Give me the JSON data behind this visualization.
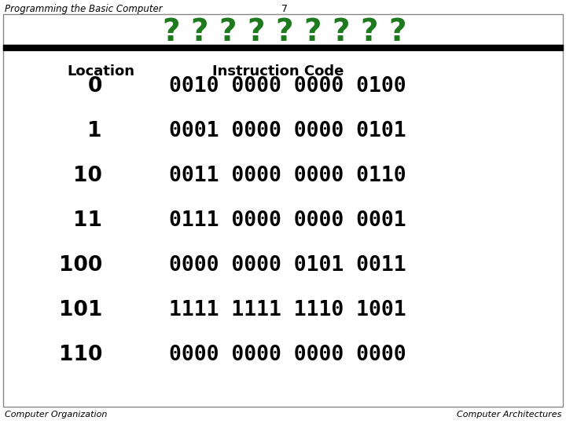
{
  "title_left": "Programming the Basic Computer",
  "title_num": "7",
  "slide_title": "? ? ? ? ? ? ? ? ?",
  "slide_title_color": "#1f7a1f",
  "header_location": "Location",
  "header_instruction": "Instruction Code",
  "locations": [
    "0",
    "1",
    "10",
    "11",
    "100",
    "101",
    "110"
  ],
  "instructions": [
    "0010 0000 0000 0100",
    "0001 0000 0000 0101",
    "0011 0000 0000 0110",
    "0111 0000 0000 0001",
    "0000 0000 0101 0011",
    "1111 1111 1110 1001",
    "0000 0000 0000 0000"
  ],
  "footer_left": "Computer Organization",
  "footer_right": "Computer Architectures",
  "bg_color": "#ffffff",
  "border_color": "#000000",
  "text_color": "#000000",
  "thick_line_color": "#000000",
  "outer_border_color": "#aaaaaa"
}
